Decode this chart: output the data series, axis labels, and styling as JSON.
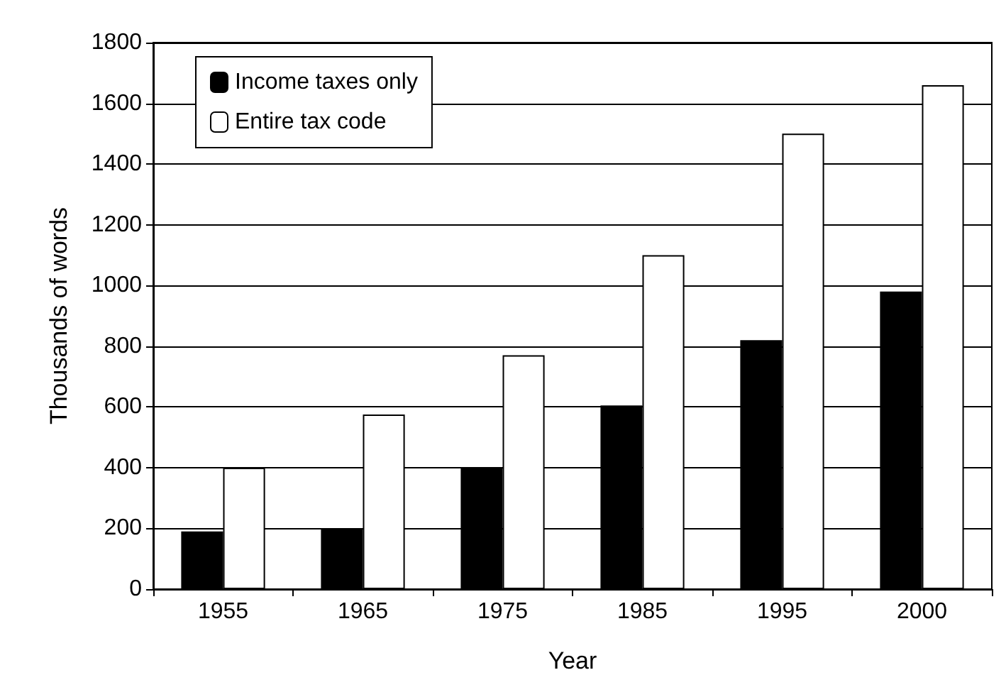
{
  "chart_data": {
    "type": "bar",
    "xlabel": "Year",
    "ylabel": "Thousands of words",
    "categories": [
      "1955",
      "1965",
      "1975",
      "1985",
      "1995",
      "2000"
    ],
    "series": [
      {
        "name": "Income taxes only",
        "color": "#000000",
        "values": [
          190,
          200,
          400,
          605,
          820,
          980
        ]
      },
      {
        "name": "Entire tax code",
        "color": "#ffffff",
        "values": [
          400,
          575,
          770,
          1100,
          1500,
          1660
        ]
      }
    ],
    "ylim": [
      0,
      1800
    ],
    "yticks": [
      0,
      200,
      400,
      600,
      800,
      1000,
      1200,
      1400,
      1600,
      1800
    ],
    "grid": "y",
    "legend": "top left"
  }
}
